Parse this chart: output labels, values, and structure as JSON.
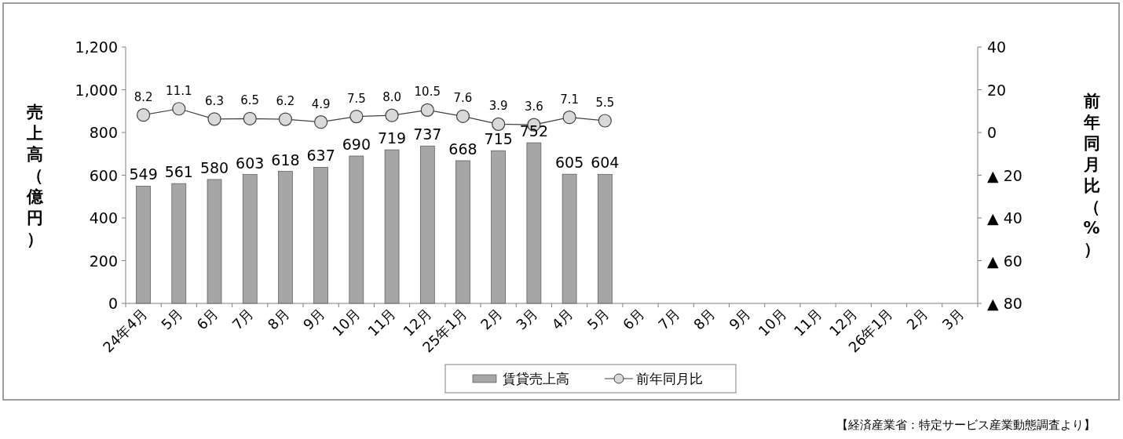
{
  "chart_data": {
    "type": "bar",
    "categories": [
      "24年4月",
      "5月",
      "6月",
      "7月",
      "8月",
      "9月",
      "10月",
      "11月",
      "12月",
      "25年1月",
      "2月",
      "3月",
      "4月",
      "5月",
      "6月",
      "7月",
      "8月",
      "9月",
      "10月",
      "11月",
      "12月",
      "26年1月",
      "2月",
      "3月"
    ],
    "series": [
      {
        "name": "賃貸売上高",
        "type": "bar",
        "color": "#a6a6a6",
        "values": [
          549,
          561,
          580,
          603,
          618,
          637,
          690,
          719,
          737,
          668,
          715,
          752,
          605,
          604,
          null,
          null,
          null,
          null,
          null,
          null,
          null,
          null,
          null,
          null
        ],
        "value_labels": [
          "549",
          "561",
          "580",
          "603",
          "618",
          "637",
          "690",
          "719",
          "737",
          "668",
          "715",
          "752",
          "605",
          "604",
          null,
          null,
          null,
          null,
          null,
          null,
          null,
          null,
          null,
          null
        ]
      },
      {
        "name": "前年同月比",
        "type": "line",
        "axis": "y2",
        "color": "#d9d9d9",
        "marker": "circle",
        "values": [
          8.2,
          11.1,
          6.3,
          6.5,
          6.2,
          4.9,
          7.5,
          8.0,
          10.5,
          7.6,
          3.9,
          3.6,
          7.1,
          5.5,
          null,
          null,
          null,
          null,
          null,
          null,
          null,
          null,
          null,
          null
        ],
        "value_labels": [
          "8.2",
          "11.1",
          "6.3",
          "6.5",
          "6.2",
          "4.9",
          "7.5",
          "8.0",
          "10.5",
          "7.6",
          "3.9",
          "3.6",
          "7.1",
          "5.5",
          null,
          null,
          null,
          null,
          null,
          null,
          null,
          null,
          null,
          null
        ]
      }
    ],
    "ylabel": "売上高（億円）",
    "y2label": "前年同月比（%）",
    "ylim": [
      0,
      1200
    ],
    "yticks": [
      0,
      200,
      400,
      600,
      800,
      {
        "value": 1000,
        "label": "1,000"
      },
      {
        "value": 1200,
        "label": "1,200"
      }
    ],
    "y2lim": [
      -80,
      40
    ],
    "y2ticks": [
      {
        "value": -80,
        "label": "▲ 80"
      },
      {
        "value": -60,
        "label": "▲ 60"
      },
      {
        "value": -40,
        "label": "▲ 40"
      },
      {
        "value": -20,
        "label": "▲ 20"
      },
      0,
      20,
      40
    ],
    "legend": "bottom",
    "annotations": [
      "【経済産業省：特定サービス産業動態調査より】"
    ]
  }
}
